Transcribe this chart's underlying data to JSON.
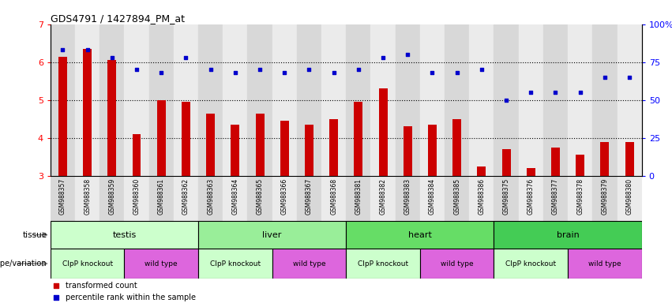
{
  "title": "GDS4791 / 1427894_PM_at",
  "samples": [
    "GSM988357",
    "GSM988358",
    "GSM988359",
    "GSM988360",
    "GSM988361",
    "GSM988362",
    "GSM988363",
    "GSM988364",
    "GSM988365",
    "GSM988366",
    "GSM988367",
    "GSM988368",
    "GSM988381",
    "GSM988382",
    "GSM988383",
    "GSM988384",
    "GSM988385",
    "GSM988386",
    "GSM988375",
    "GSM988376",
    "GSM988377",
    "GSM988378",
    "GSM988379",
    "GSM988380"
  ],
  "bar_values": [
    6.15,
    6.35,
    6.05,
    4.1,
    5.0,
    4.95,
    4.65,
    4.35,
    4.65,
    4.45,
    4.35,
    4.5,
    4.95,
    5.3,
    4.3,
    4.35,
    4.5,
    3.25,
    3.7,
    3.2,
    3.75,
    3.55,
    3.9,
    3.9
  ],
  "dot_values": [
    83,
    83,
    78,
    70,
    68,
    78,
    70,
    68,
    70,
    68,
    70,
    68,
    70,
    78,
    80,
    68,
    68,
    70,
    50,
    55,
    55,
    55,
    65,
    65
  ],
  "bar_color": "#cc0000",
  "dot_color": "#0000cc",
  "ylim_left": [
    3,
    7
  ],
  "ylim_right": [
    0,
    100
  ],
  "yticks_left": [
    3,
    4,
    5,
    6,
    7
  ],
  "yticks_right": [
    0,
    25,
    50,
    75,
    100
  ],
  "ytick_labels_right": [
    "0",
    "25",
    "50",
    "75",
    "100%"
  ],
  "grid_values": [
    4.0,
    5.0,
    6.0
  ],
  "col_colors": [
    "#d8d8d8",
    "#ebebeb"
  ],
  "tissues": [
    {
      "label": "testis",
      "start": 0,
      "end": 6,
      "color": "#ccffcc"
    },
    {
      "label": "liver",
      "start": 6,
      "end": 12,
      "color": "#99ee99"
    },
    {
      "label": "heart",
      "start": 12,
      "end": 18,
      "color": "#66dd66"
    },
    {
      "label": "brain",
      "start": 18,
      "end": 24,
      "color": "#44cc55"
    }
  ],
  "genotypes": [
    {
      "label": "ClpP knockout",
      "start": 0,
      "end": 3,
      "color": "#ccffcc"
    },
    {
      "label": "wild type",
      "start": 3,
      "end": 6,
      "color": "#dd66dd"
    },
    {
      "label": "ClpP knockout",
      "start": 6,
      "end": 9,
      "color": "#ccffcc"
    },
    {
      "label": "wild type",
      "start": 9,
      "end": 12,
      "color": "#dd66dd"
    },
    {
      "label": "ClpP knockout",
      "start": 12,
      "end": 15,
      "color": "#ccffcc"
    },
    {
      "label": "wild type",
      "start": 15,
      "end": 18,
      "color": "#dd66dd"
    },
    {
      "label": "ClpP knockout",
      "start": 18,
      "end": 21,
      "color": "#ccffcc"
    },
    {
      "label": "wild type",
      "start": 21,
      "end": 24,
      "color": "#dd66dd"
    }
  ],
  "legend_items": [
    {
      "label": "transformed count",
      "color": "#cc0000"
    },
    {
      "label": "percentile rank within the sample",
      "color": "#0000cc"
    }
  ],
  "tissue_label": "tissue",
  "genotype_label": "genotype/variation",
  "bg_even": "#d8d8d8",
  "bg_odd": "#ebebeb"
}
